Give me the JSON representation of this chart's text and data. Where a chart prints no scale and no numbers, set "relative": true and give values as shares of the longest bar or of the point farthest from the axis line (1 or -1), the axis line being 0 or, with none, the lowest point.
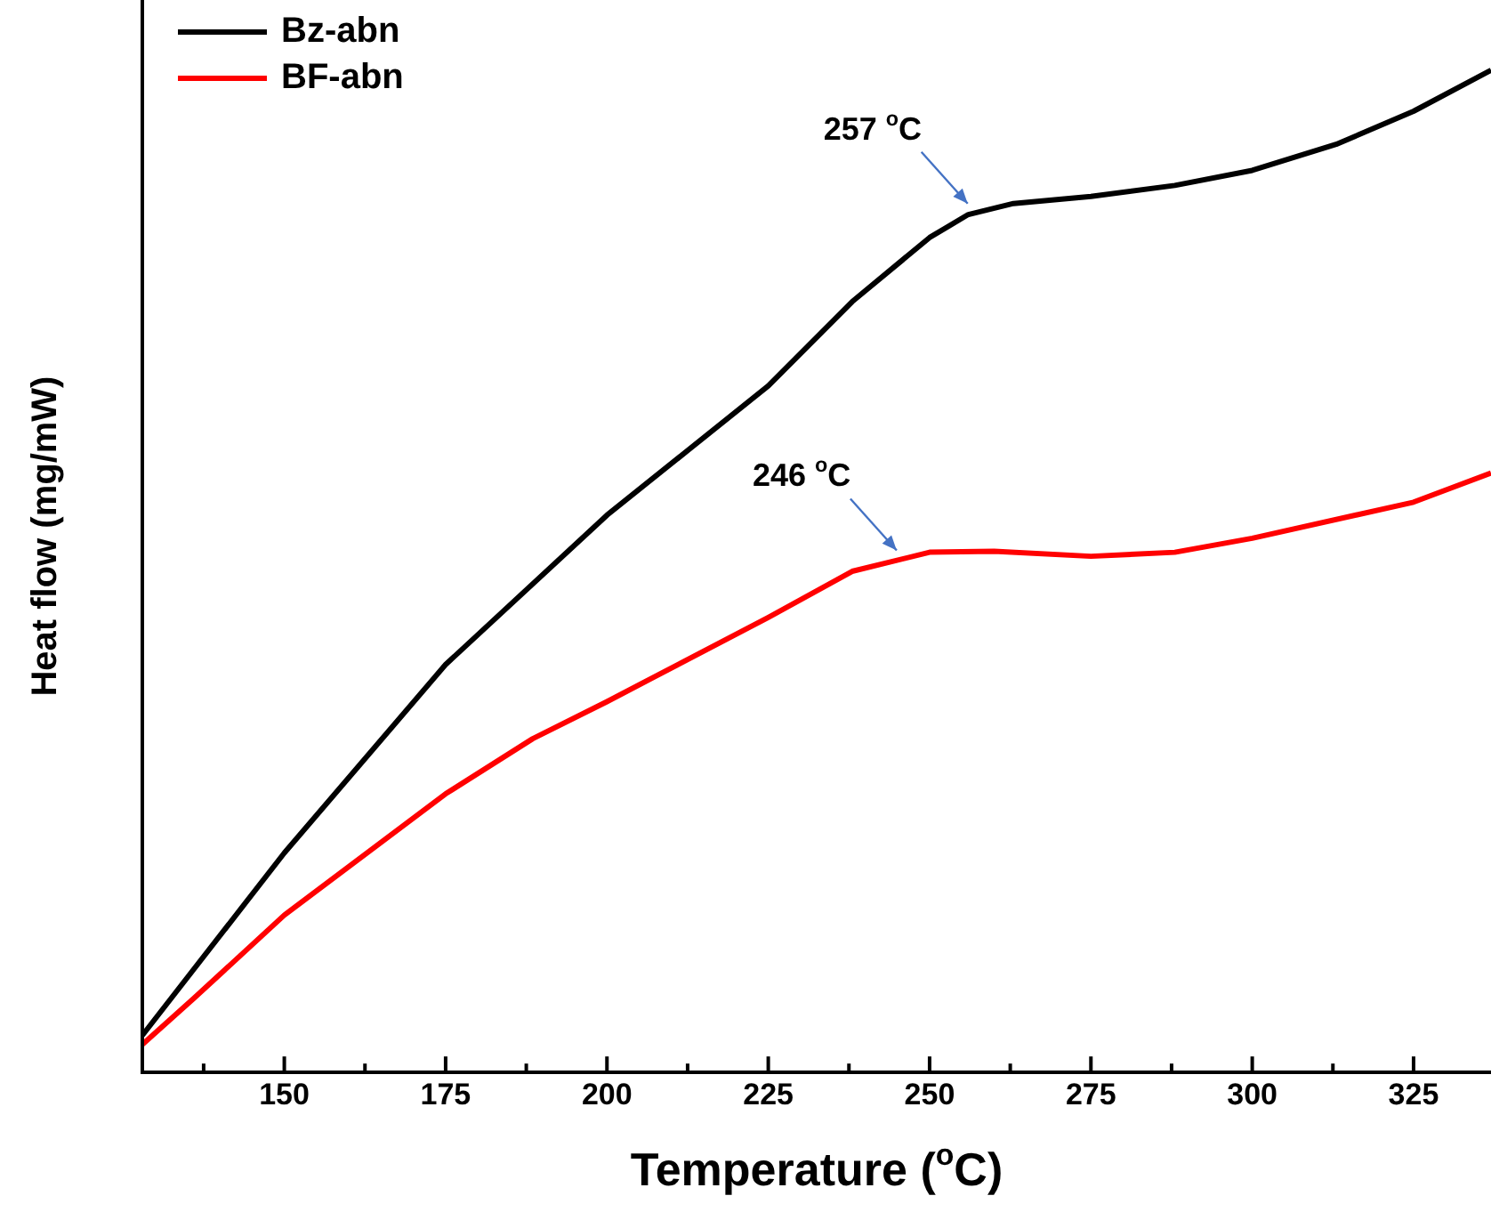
{
  "chart_data": {
    "type": "line",
    "xlabel": "Temperature ($^{o}$C)",
    "ylabel": "Heat flow (mg/mW)",
    "relative": true,
    "xlim": [
      128,
      337
    ],
    "xticks": [
      {
        "value": 137.5,
        "label": null
      },
      150,
      {
        "value": 162.5,
        "label": null
      },
      175,
      {
        "value": 187.5,
        "label": null
      },
      200,
      {
        "value": 212.5,
        "label": null
      },
      225,
      {
        "value": 237.5,
        "label": null
      },
      250,
      {
        "value": 262.5,
        "label": null
      },
      275,
      {
        "value": 287.5,
        "label": null
      },
      300,
      {
        "value": 312.5,
        "label": null
      },
      325
    ],
    "grid": false,
    "legend": "top left",
    "marker": "none",
    "line_style": "solid",
    "series": [
      {
        "name": "Bz-abn",
        "color": "#000000",
        "x": [
          128,
          150,
          175,
          200,
          225,
          238,
          250,
          256,
          263,
          275,
          288,
          300,
          313,
          325,
          337
        ],
        "values": [
          0.037,
          0.219,
          0.407,
          0.556,
          0.685,
          0.769,
          0.833,
          0.856,
          0.867,
          0.874,
          0.885,
          0.9,
          0.926,
          0.959,
          1.0
        ]
      },
      {
        "name": "BF-abn",
        "color": "#ff0000",
        "x": [
          128,
          136,
          150,
          175,
          188.5,
          200,
          225,
          238,
          250,
          260,
          275,
          288,
          300,
          325,
          337
        ],
        "values": [
          0.028,
          0.074,
          0.157,
          0.278,
          0.333,
          0.37,
          0.454,
          0.5,
          0.519,
          0.52,
          0.515,
          0.519,
          0.533,
          0.569,
          0.598
        ]
      }
    ],
    "annotations": [
      {
        "text": "257 $^{o}$C",
        "x": 257,
        "y": 0.858
      },
      {
        "text": "246 $^{o}$C",
        "x": 246,
        "y": 0.512
      }
    ]
  }
}
